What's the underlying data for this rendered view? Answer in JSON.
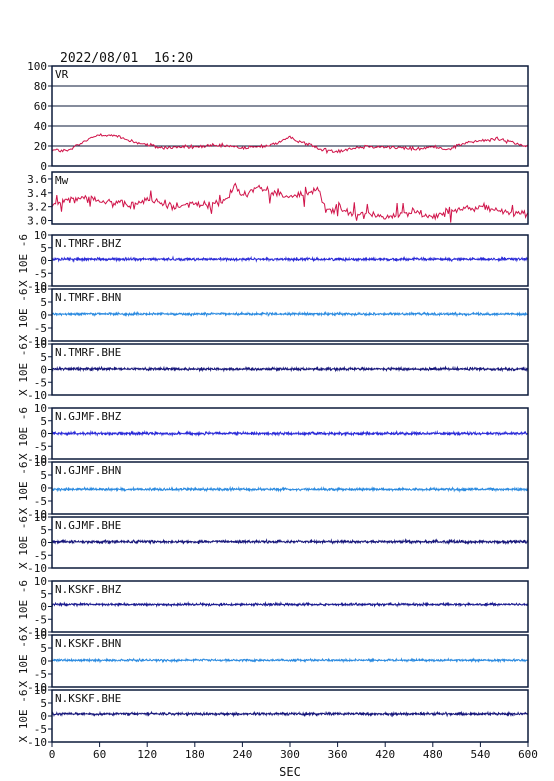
{
  "header": {
    "timestamp": "2022/08/01  16:20"
  },
  "colors": {
    "frame": "#0b1a3a",
    "vr": "#d0144a",
    "mw": "#d0144a",
    "navy": "#16167a",
    "blue": "#2a2ad8",
    "lightblue": "#2a8ae0",
    "darkblue": "#1a1a90"
  },
  "chart_data": [
    {
      "type": "line",
      "label": "VR",
      "ylim": [
        0,
        100
      ],
      "yticks": [
        0,
        20,
        40,
        60,
        80,
        100
      ],
      "ytick_labels": [
        "0",
        "20",
        "40",
        "60",
        "80",
        "100"
      ],
      "grid": true,
      "x": [
        0,
        20,
        40,
        60,
        80,
        100,
        120,
        140,
        160,
        180,
        200,
        220,
        240,
        260,
        280,
        300,
        320,
        340,
        360,
        380,
        400,
        420,
        440,
        460,
        480,
        500,
        520,
        540,
        560,
        580,
        600
      ],
      "values": [
        16,
        15,
        24,
        32,
        30,
        25,
        21,
        18,
        19,
        19,
        20,
        20,
        18,
        19,
        22,
        28,
        23,
        16,
        15,
        18,
        20,
        19,
        18,
        17,
        19,
        17,
        23,
        25,
        27,
        24,
        19
      ],
      "noise": 2
    },
    {
      "type": "line",
      "label": "Mw",
      "ylim": [
        2.95,
        3.7
      ],
      "yticks": [
        3.0,
        3.2,
        3.4,
        3.6
      ],
      "ytick_labels": [
        "3.0",
        "3.2",
        "3.4",
        "3.6"
      ],
      "grid": false,
      "x": [
        0,
        20,
        40,
        60,
        80,
        100,
        120,
        140,
        160,
        180,
        200,
        220,
        230,
        240,
        260,
        280,
        300,
        320,
        335,
        345,
        360,
        380,
        400,
        420,
        440,
        460,
        480,
        500,
        520,
        540,
        560,
        580,
        600
      ],
      "values": [
        3.2,
        3.3,
        3.35,
        3.3,
        3.25,
        3.2,
        3.3,
        3.25,
        3.2,
        3.25,
        3.2,
        3.3,
        3.5,
        3.35,
        3.5,
        3.4,
        3.35,
        3.4,
        3.45,
        3.15,
        3.15,
        3.1,
        3.1,
        3.05,
        3.1,
        3.1,
        3.05,
        3.15,
        3.15,
        3.2,
        3.15,
        3.1,
        3.1
      ],
      "noise": 0.06
    },
    {
      "type": "line",
      "label": "N.TMRF.BHZ",
      "ylim": [
        -10,
        10
      ],
      "yticks": [
        -10,
        -5,
        0,
        5,
        10
      ],
      "ytick_labels": [
        "-10",
        "-5",
        "0",
        "5",
        "10"
      ],
      "offset": 0.5,
      "noise": 0.55,
      "color": "blue"
    },
    {
      "type": "line",
      "label": "N.TMRF.BHN",
      "ylim": [
        -10,
        10
      ],
      "yticks": [
        -10,
        -5,
        0,
        5,
        10
      ],
      "ytick_labels": [
        "-10",
        "-5",
        "0",
        "5",
        "10"
      ],
      "offset": 0.4,
      "noise": 0.45,
      "color": "lightblue"
    },
    {
      "type": "line",
      "label": "N.TMRF.BHE",
      "ylim": [
        -10,
        10
      ],
      "yticks": [
        -10,
        -5,
        0,
        5,
        10
      ],
      "ytick_labels": [
        "-10",
        "-5",
        "0",
        "5",
        "10"
      ],
      "offset": 0.2,
      "noise": 0.55,
      "color": "navy"
    },
    {
      "type": "line",
      "label": "N.GJMF.BHZ",
      "ylim": [
        -10,
        10
      ],
      "yticks": [
        -10,
        -5,
        0,
        5,
        10
      ],
      "ytick_labels": [
        "-10",
        "-5",
        "0",
        "5",
        "10"
      ],
      "offset": 0.0,
      "noise": 0.55,
      "color": "blue"
    },
    {
      "type": "line",
      "label": "N.GJMF.BHN",
      "ylim": [
        -10,
        10
      ],
      "yticks": [
        -10,
        -5,
        0,
        5,
        10
      ],
      "ytick_labels": [
        "-10",
        "-5",
        "0",
        "5",
        "10"
      ],
      "offset": -0.5,
      "noise": 0.5,
      "color": "lightblue"
    },
    {
      "type": "line",
      "label": "N.GJMF.BHE",
      "ylim": [
        -10,
        10
      ],
      "yticks": [
        -10,
        -5,
        0,
        5,
        10
      ],
      "ytick_labels": [
        "-10",
        "-5",
        "0",
        "5",
        "10"
      ],
      "offset": 0.3,
      "noise": 0.55,
      "color": "navy"
    },
    {
      "type": "line",
      "label": "N.KSKF.BHZ",
      "ylim": [
        -10,
        10
      ],
      "yticks": [
        -10,
        -5,
        0,
        5,
        10
      ],
      "ytick_labels": [
        "-10",
        "-5",
        "0",
        "5",
        "10"
      ],
      "offset": 0.8,
      "noise": 0.45,
      "color": "darkblue"
    },
    {
      "type": "line",
      "label": "N.KSKF.BHN",
      "ylim": [
        -10,
        10
      ],
      "yticks": [
        -10,
        -5,
        0,
        5,
        10
      ],
      "ytick_labels": [
        "-10",
        "-5",
        "0",
        "5",
        "10"
      ],
      "offset": 0.3,
      "noise": 0.4,
      "color": "lightblue"
    },
    {
      "type": "line",
      "label": "N.KSKF.BHE",
      "ylim": [
        -10,
        10
      ],
      "yticks": [
        -10,
        -5,
        0,
        5,
        10
      ],
      "ytick_labels": [
        "-10",
        "-5",
        "0",
        "5",
        "10"
      ],
      "offset": 0.8,
      "noise": 0.5,
      "color": "navy"
    }
  ],
  "wave_axis_label": "X 10E -6",
  "x_axis": {
    "label": "SEC",
    "xlim": [
      0,
      600
    ],
    "ticks": [
      0,
      60,
      120,
      180,
      240,
      300,
      360,
      420,
      480,
      540,
      600
    ],
    "tick_labels": [
      "0",
      "60",
      "120",
      "180",
      "240",
      "300",
      "360",
      "420",
      "480",
      "540",
      "600"
    ]
  }
}
